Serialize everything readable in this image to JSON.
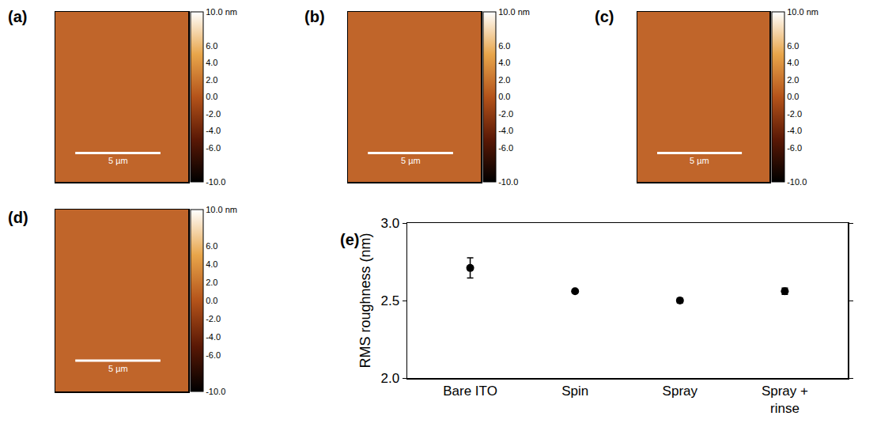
{
  "chart_data": [
    {
      "type": "image",
      "panel": "(a)",
      "extent": [
        0,
        7.8
      ],
      "scale_bar": {
        "label": "5 µm",
        "length": 5
      },
      "colorbar": {
        "range": [
          -10,
          10
        ],
        "ticks": [
          {
            "value": 10,
            "label": "10.0 nm"
          },
          {
            "value": 6,
            "label": "6.0"
          },
          {
            "value": 4,
            "label": "4.0"
          },
          {
            "value": 2,
            "label": "2.0"
          },
          {
            "value": 0,
            "label": "0.0"
          },
          {
            "value": -2,
            "label": "-2.0"
          },
          {
            "value": -4,
            "label": "-4.0"
          },
          {
            "value": -6,
            "label": "-6.0"
          },
          {
            "value": -10,
            "label": "-10.0"
          }
        ]
      }
    },
    {
      "type": "image",
      "panel": "(b)",
      "extent": [
        0,
        7.8
      ],
      "scale_bar": {
        "label": "5 µm",
        "length": 5
      },
      "colorbar": {
        "range": [
          -10,
          10
        ],
        "ticks": [
          {
            "value": 10,
            "label": "10.0 nm"
          },
          {
            "value": 6,
            "label": "6.0"
          },
          {
            "value": 4,
            "label": "4.0"
          },
          {
            "value": 2,
            "label": "2.0"
          },
          {
            "value": 0,
            "label": "0.0"
          },
          {
            "value": -2,
            "label": "-2.0"
          },
          {
            "value": -4,
            "label": "-4.0"
          },
          {
            "value": -6,
            "label": "-6.0"
          },
          {
            "value": -10,
            "label": "-10.0"
          }
        ]
      }
    },
    {
      "type": "image",
      "panel": "(c)",
      "extent": [
        0,
        7.8
      ],
      "scale_bar": {
        "label": "5 µm",
        "length": 5
      },
      "colorbar": {
        "range": [
          -10,
          10
        ],
        "ticks": [
          {
            "value": 10,
            "label": "10.0 nm"
          },
          {
            "value": 6,
            "label": "6.0"
          },
          {
            "value": 4,
            "label": "4.0"
          },
          {
            "value": 2,
            "label": "2.0"
          },
          {
            "value": 0,
            "label": "0.0"
          },
          {
            "value": -2,
            "label": "-2.0"
          },
          {
            "value": -4,
            "label": "-4.0"
          },
          {
            "value": -6,
            "label": "-6.0"
          },
          {
            "value": -10,
            "label": "-10.0"
          }
        ]
      }
    },
    {
      "type": "image",
      "panel": "(d)",
      "extent": [
        0,
        7.8
      ],
      "scale_bar": {
        "label": "5 µm",
        "length": 5
      },
      "colorbar": {
        "range": [
          -10,
          10
        ],
        "ticks": [
          {
            "value": 10,
            "label": "10.0 nm"
          },
          {
            "value": 6,
            "label": "6.0"
          },
          {
            "value": 4,
            "label": "4.0"
          },
          {
            "value": 2,
            "label": "2.0"
          },
          {
            "value": 0,
            "label": "0.0"
          },
          {
            "value": -2,
            "label": "-2.0"
          },
          {
            "value": -4,
            "label": "-4.0"
          },
          {
            "value": -6,
            "label": "-6.0"
          },
          {
            "value": -10,
            "label": "-10.0"
          }
        ]
      }
    },
    {
      "type": "scatter",
      "panel": "(e)",
      "categories": [
        "Bare ITO",
        "Spin",
        "Spray",
        "Spray + rinse"
      ],
      "values": [
        2.71,
        2.56,
        2.5,
        2.56
      ],
      "errors": [
        0.065,
        0.01,
        0.015,
        0.02
      ],
      "ylabel": "RMS roughness (nm)",
      "ylim": [
        2.0,
        3.0
      ],
      "yticks": [
        {
          "value": 2,
          "label": "2.0"
        },
        {
          "value": 2.5,
          "label": "2.5"
        },
        {
          "value": 3,
          "label": "3.0"
        }
      ],
      "color": "#000000",
      "marker": "circle"
    }
  ]
}
